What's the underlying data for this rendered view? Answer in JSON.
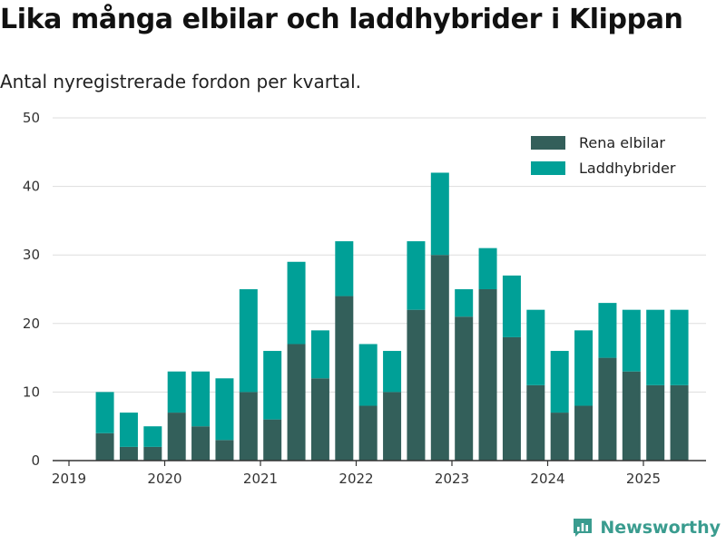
{
  "title": "Lika många elbilar och laddhybrider i Klippan",
  "subtitle": "Antal nyregistrerade fordon per kvartal.",
  "brand": {
    "name": "Newsworthy",
    "icon": "newsworthy-logo-icon"
  },
  "colors": {
    "series1": "#335f5a",
    "series2": "#00a097",
    "grid": "#dddddd",
    "axis": "#333333"
  },
  "chart_data": {
    "type": "bar",
    "stacked": true,
    "categories": [
      "2019 Q2",
      "2019 Q3",
      "2019 Q4",
      "2020 Q1",
      "2020 Q2",
      "2020 Q3",
      "2020 Q4",
      "2021 Q1",
      "2021 Q2",
      "2021 Q3",
      "2021 Q4",
      "2022 Q1",
      "2022 Q2",
      "2022 Q3",
      "2022 Q4",
      "2023 Q1",
      "2023 Q2",
      "2023 Q3",
      "2023 Q4",
      "2024 Q1",
      "2024 Q2",
      "2024 Q3",
      "2024 Q4",
      "2025 Q1",
      "2025 Q2"
    ],
    "series": [
      {
        "name": "Rena elbilar",
        "color": "#335f5a",
        "values": [
          4,
          2,
          2,
          7,
          5,
          3,
          10,
          6,
          17,
          12,
          24,
          8,
          10,
          22,
          30,
          21,
          25,
          18,
          11,
          7,
          8,
          15,
          13,
          11,
          11
        ]
      },
      {
        "name": "Laddhybrider",
        "color": "#00a097",
        "values": [
          6,
          5,
          3,
          6,
          8,
          9,
          15,
          10,
          12,
          7,
          8,
          9,
          6,
          10,
          12,
          4,
          6,
          9,
          11,
          9,
          11,
          8,
          9,
          11,
          11
        ]
      }
    ],
    "x_tick_labels": [
      "2019",
      "2020",
      "2021",
      "2022",
      "2023",
      "2024",
      "2025"
    ],
    "y_ticks": [
      0,
      10,
      20,
      30,
      40,
      50
    ],
    "ylim": [
      0,
      50
    ],
    "xlabel": "",
    "ylabel": "",
    "grid": true,
    "legend_position": "top-right"
  }
}
